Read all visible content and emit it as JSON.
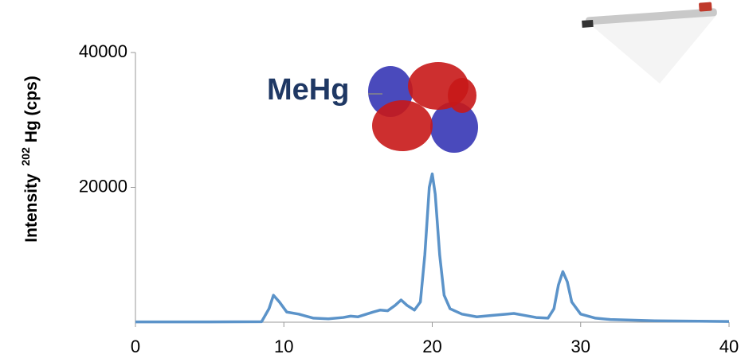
{
  "chart_data": {
    "type": "line",
    "y_label": [
      "Intensity",
      "202",
      "Hg (cps)"
    ],
    "annotation": "MeHg",
    "x": [
      0,
      5,
      8.5,
      9,
      9.3,
      9.7,
      10.2,
      11,
      12,
      13,
      14,
      14.5,
      15,
      16,
      16.5,
      17,
      17.5,
      17.9,
      18.3,
      18.8,
      19.2,
      19.5,
      19.8,
      20,
      20.2,
      20.5,
      20.8,
      21.2,
      22,
      23,
      24,
      25,
      25.5,
      26,
      27,
      27.8,
      28.2,
      28.5,
      28.8,
      29.1,
      29.4,
      30,
      31,
      32,
      35,
      40
    ],
    "series": [
      {
        "color": "#5b93c9",
        "values": [
          50,
          50,
          80,
          2000,
          4000,
          3000,
          1500,
          1200,
          600,
          500,
          700,
          900,
          800,
          1500,
          1800,
          1700,
          2500,
          3300,
          2500,
          1800,
          3000,
          10000,
          20000,
          22000,
          19000,
          10000,
          4000,
          2000,
          1200,
          800,
          1000,
          1200,
          1300,
          1100,
          700,
          600,
          2000,
          5500,
          7500,
          6000,
          3000,
          1200,
          600,
          400,
          200,
          100
        ]
      }
    ],
    "xlim": [
      0,
      40
    ],
    "xticks": [
      0,
      10,
      20,
      30,
      40
    ],
    "ylim": [
      0,
      40000
    ],
    "yticks": [
      20000,
      40000
    ]
  }
}
